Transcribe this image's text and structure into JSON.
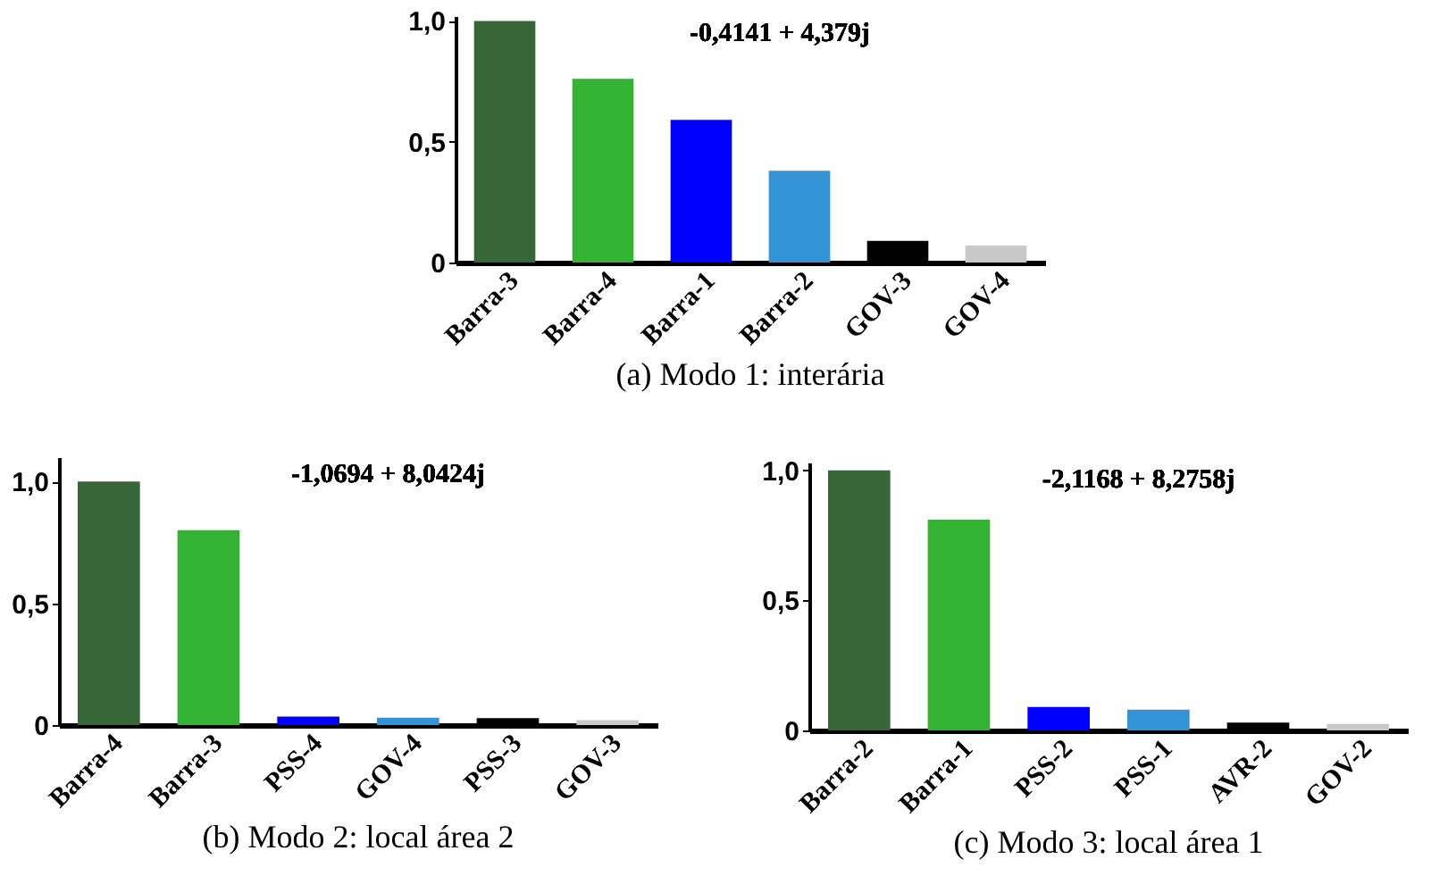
{
  "chart_data": [
    {
      "type": "bar",
      "title": "(a) Modo 1: interária",
      "annotations": [
        "-0,4141 + 4,379j"
      ],
      "categories": [
        "Barra-3",
        "Barra-4",
        "Barra-1",
        "Barra-2",
        "GOV-3",
        "GOV-4"
      ],
      "values": [
        1.0,
        0.76,
        0.59,
        0.38,
        0.09,
        0.07
      ],
      "colors": [
        "#376639",
        "#33b233",
        "#0000ff",
        "#3393d6",
        "#000000",
        "#c8c8c8"
      ],
      "ylim": [
        0,
        1.02
      ],
      "yticks": [
        {
          "value": 0,
          "label": "0"
        },
        {
          "value": 0.5,
          "label": "0,5"
        },
        {
          "value": 1,
          "label": "1,0"
        }
      ],
      "grid": false
    },
    {
      "type": "bar",
      "title": "(b) Modo 2: local área 2",
      "annotations": [
        "-1,0694 + 8,0424j"
      ],
      "categories": [
        "Barra-4",
        "Barra-3",
        "PSS-4",
        "GOV-4",
        "PSS-3",
        "GOV-3"
      ],
      "values": [
        1.0,
        0.8,
        0.035,
        0.03,
        0.028,
        0.02
      ],
      "colors": [
        "#376639",
        "#33b233",
        "#0000ff",
        "#3393d6",
        "#000000",
        "#c8c8c8"
      ],
      "ylim": [
        0,
        1.1
      ],
      "yticks": [
        {
          "value": 0,
          "label": "0"
        },
        {
          "value": 0.5,
          "label": "0,5"
        },
        {
          "value": 1,
          "label": "1,0"
        }
      ],
      "grid": false
    },
    {
      "type": "bar",
      "title": "(c) Modo 3: local área 1",
      "annotations": [
        "-2,1168 + 8,2758j"
      ],
      "categories": [
        "Barra-2",
        "Barra-1",
        "PSS-2",
        "PSS-1",
        "AVR-2",
        "GOV-2"
      ],
      "values": [
        1.0,
        0.81,
        0.09,
        0.08,
        0.03,
        0.025
      ],
      "colors": [
        "#376639",
        "#33b233",
        "#0000ff",
        "#3393d6",
        "#000000",
        "#c8c8c8"
      ],
      "ylim": [
        0,
        1.03
      ],
      "yticks": [
        {
          "value": 0,
          "label": "0"
        },
        {
          "value": 0.5,
          "label": "0,5"
        },
        {
          "value": 1,
          "label": "1,0"
        }
      ],
      "grid": false
    }
  ]
}
